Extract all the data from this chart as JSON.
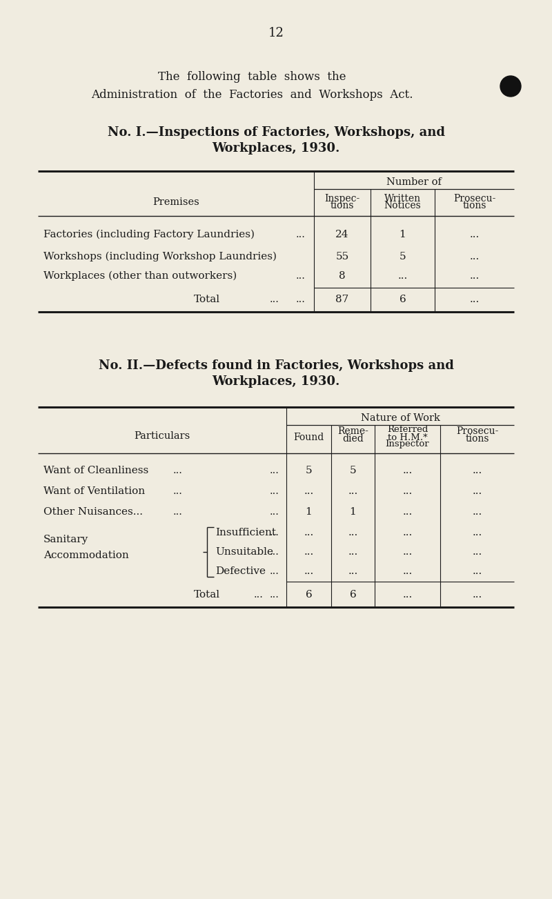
{
  "bg_color": "#f0ece0",
  "text_color": "#1a1a1a",
  "page_number": "12",
  "intro_line1": "The  following  table  shows  the",
  "intro_line2": "Administration  of  the  Factories  and  Workshops  Act.",
  "table1_title1": "No. I.—Inspections of Factories, Workshops, and",
  "table1_title2": "Workplaces, 1930.",
  "table1_header_span": "Number of",
  "table1_col_headers": [
    "Inspec-\ntions",
    "Written\nNotices",
    "Prosecu-\ntions"
  ],
  "table1_row_header": "Premises",
  "table2_title1": "No. II.—Defects found in Factories, Workshops and",
  "table2_title2": "Workplaces, 1930.",
  "table2_header_span": "Nature of Work",
  "table2_col_headers": [
    "Found",
    "Reme-\ndied",
    "Referred\nto H.M.*\nInspector",
    "Prosecu-\ntions"
  ],
  "table2_row_header": "Particulars"
}
